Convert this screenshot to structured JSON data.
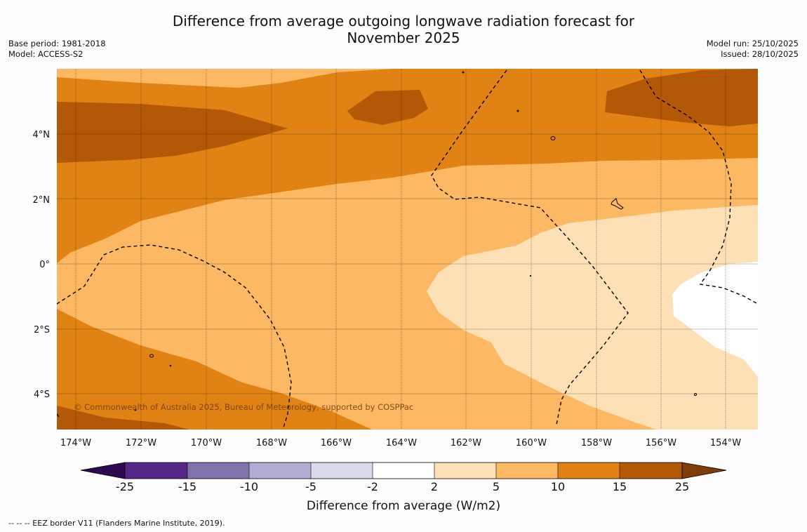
{
  "title_line1": "Difference from average outgoing longwave radiation forecast for",
  "title_line2": "November 2025",
  "base_period": "Base period: 1981-2018",
  "model": "Model: ACCESS-S2",
  "model_run": "Model run: 25/10/2025",
  "issued": "Issued: 28/10/2025",
  "copyright": "© Commonwealth of Australia 2025, Bureau of Meteorology, supported by COSPPac",
  "footer": "--  --  -- EEZ border V11 (Flanders Marine Institute, 2019).",
  "map": {
    "lon_labels": [
      "174°W",
      "172°W",
      "170°W",
      "168°W",
      "166°W",
      "164°W",
      "162°W",
      "160°W",
      "158°W",
      "156°W",
      "154°W"
    ],
    "lat_labels": [
      "4°N",
      "2°N",
      "0°",
      "2°S",
      "4°S"
    ]
  },
  "colorbar": {
    "title": "Difference from average (W/m2)",
    "ticks": [
      "-25",
      "-15",
      "-10",
      "-5",
      "-2",
      "2",
      "5",
      "10",
      "15",
      "25"
    ],
    "low_extend_color": "#2d0a4f",
    "high_extend_color": "#7f3b08",
    "colors": [
      "#542788",
      "#8073ac",
      "#b2abd2",
      "#d8daeb",
      "#ffffff",
      "#fee0b6",
      "#fdb863",
      "#e08214",
      "#b35806"
    ]
  },
  "palette": {
    "c5to10": "#fdb863",
    "c10to15": "#e08214",
    "c15to25": "#b35806",
    "c2to5": "#fee0b6",
    "neutral": "#ffffff"
  }
}
